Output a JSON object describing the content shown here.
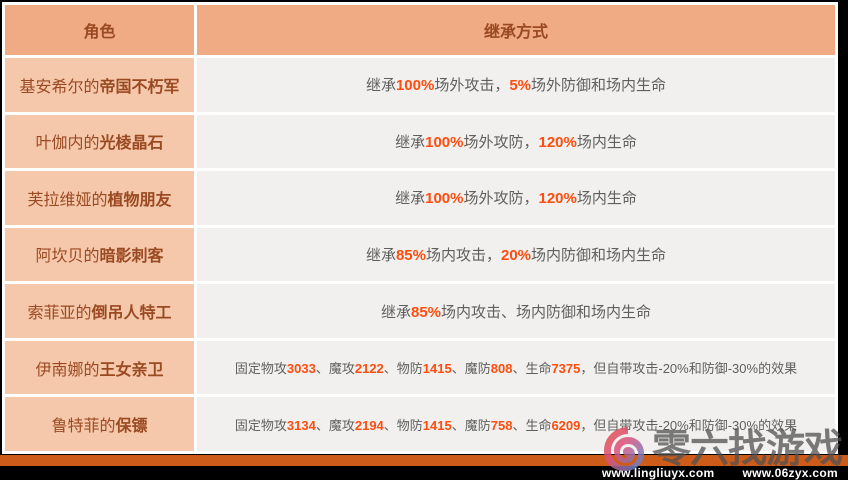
{
  "colors": {
    "header-bg": "#f0aa84",
    "left-bg": "#f6c8ab",
    "right-bg": "#f1f0ee",
    "name-color": "#9a4a22",
    "text-gray": "#5f5f5f",
    "accent-red": "#fe4d0e",
    "footer-orange": "#cd5c1b"
  },
  "table": {
    "headers": [
      {
        "label": "角色"
      },
      {
        "label": "继承方式"
      }
    ],
    "rows": [
      {
        "owner": "基安希尔的",
        "pet": "帝国不朽军",
        "small": false,
        "desc": [
          {
            "t": "继承",
            "s": "n"
          },
          {
            "t": "100%",
            "s": "e"
          },
          {
            "t": "场外攻击，",
            "s": "n"
          },
          {
            "t": "5%",
            "s": "e"
          },
          {
            "t": "场外防御和场内生命",
            "s": "n"
          }
        ]
      },
      {
        "owner": "叶伽内的",
        "pet": "光棱晶石",
        "small": false,
        "desc": [
          {
            "t": "继承",
            "s": "n"
          },
          {
            "t": "100%",
            "s": "e"
          },
          {
            "t": "场外攻防，",
            "s": "n"
          },
          {
            "t": "120%",
            "s": "e"
          },
          {
            "t": "场内生命",
            "s": "n"
          }
        ]
      },
      {
        "owner": "芙拉维娅的",
        "pet": "植物朋友",
        "small": false,
        "desc": [
          {
            "t": "继承",
            "s": "n"
          },
          {
            "t": "100%",
            "s": "e"
          },
          {
            "t": "场外攻防，",
            "s": "n"
          },
          {
            "t": "120%",
            "s": "e"
          },
          {
            "t": "场内生命",
            "s": "n"
          }
        ]
      },
      {
        "owner": "阿坎贝的",
        "pet": "暗影刺客",
        "small": false,
        "desc": [
          {
            "t": "继承",
            "s": "n"
          },
          {
            "t": "85%",
            "s": "e"
          },
          {
            "t": "场内攻击，",
            "s": "n"
          },
          {
            "t": "20%",
            "s": "e"
          },
          {
            "t": "场内防御和场内生命",
            "s": "n"
          }
        ]
      },
      {
        "owner": "索菲亚的",
        "pet": "倒吊人特工",
        "small": false,
        "desc": [
          {
            "t": "继承",
            "s": "n"
          },
          {
            "t": "85%",
            "s": "e"
          },
          {
            "t": "场内攻击、场内防御和场内生命",
            "s": "n"
          }
        ]
      },
      {
        "owner": "伊南娜的",
        "pet": "王女亲卫",
        "small": true,
        "desc": [
          {
            "t": "固定物攻",
            "s": "n"
          },
          {
            "t": "3033",
            "s": "e"
          },
          {
            "t": "、魔攻",
            "s": "n"
          },
          {
            "t": "2122",
            "s": "e"
          },
          {
            "t": "、物防",
            "s": "n"
          },
          {
            "t": "1415",
            "s": "e"
          },
          {
            "t": "、魔防",
            "s": "n"
          },
          {
            "t": "808",
            "s": "e"
          },
          {
            "t": "、生命",
            "s": "n"
          },
          {
            "t": "7375",
            "s": "e"
          },
          {
            "t": "，但自带攻击-20%和防御-30%的效果",
            "s": "n"
          }
        ]
      },
      {
        "owner": "鲁特菲的",
        "pet": "保镖",
        "small": true,
        "desc": [
          {
            "t": "固定物攻",
            "s": "n"
          },
          {
            "t": "3134",
            "s": "e"
          },
          {
            "t": "、魔攻",
            "s": "n"
          },
          {
            "t": "2194",
            "s": "e"
          },
          {
            "t": "、物防",
            "s": "n"
          },
          {
            "t": "1415",
            "s": "e"
          },
          {
            "t": "、魔防",
            "s": "n"
          },
          {
            "t": "758",
            "s": "e"
          },
          {
            "t": "、生命",
            "s": "n"
          },
          {
            "t": "6209",
            "s": "e"
          },
          {
            "t": "，但自带攻击-20%和防御-30%的效果",
            "s": "n"
          }
        ]
      }
    ]
  },
  "footer": {
    "watermark_text": "零六找游戏",
    "urls": [
      "www.lingliuyx.com",
      "www.06zyx.com"
    ]
  }
}
